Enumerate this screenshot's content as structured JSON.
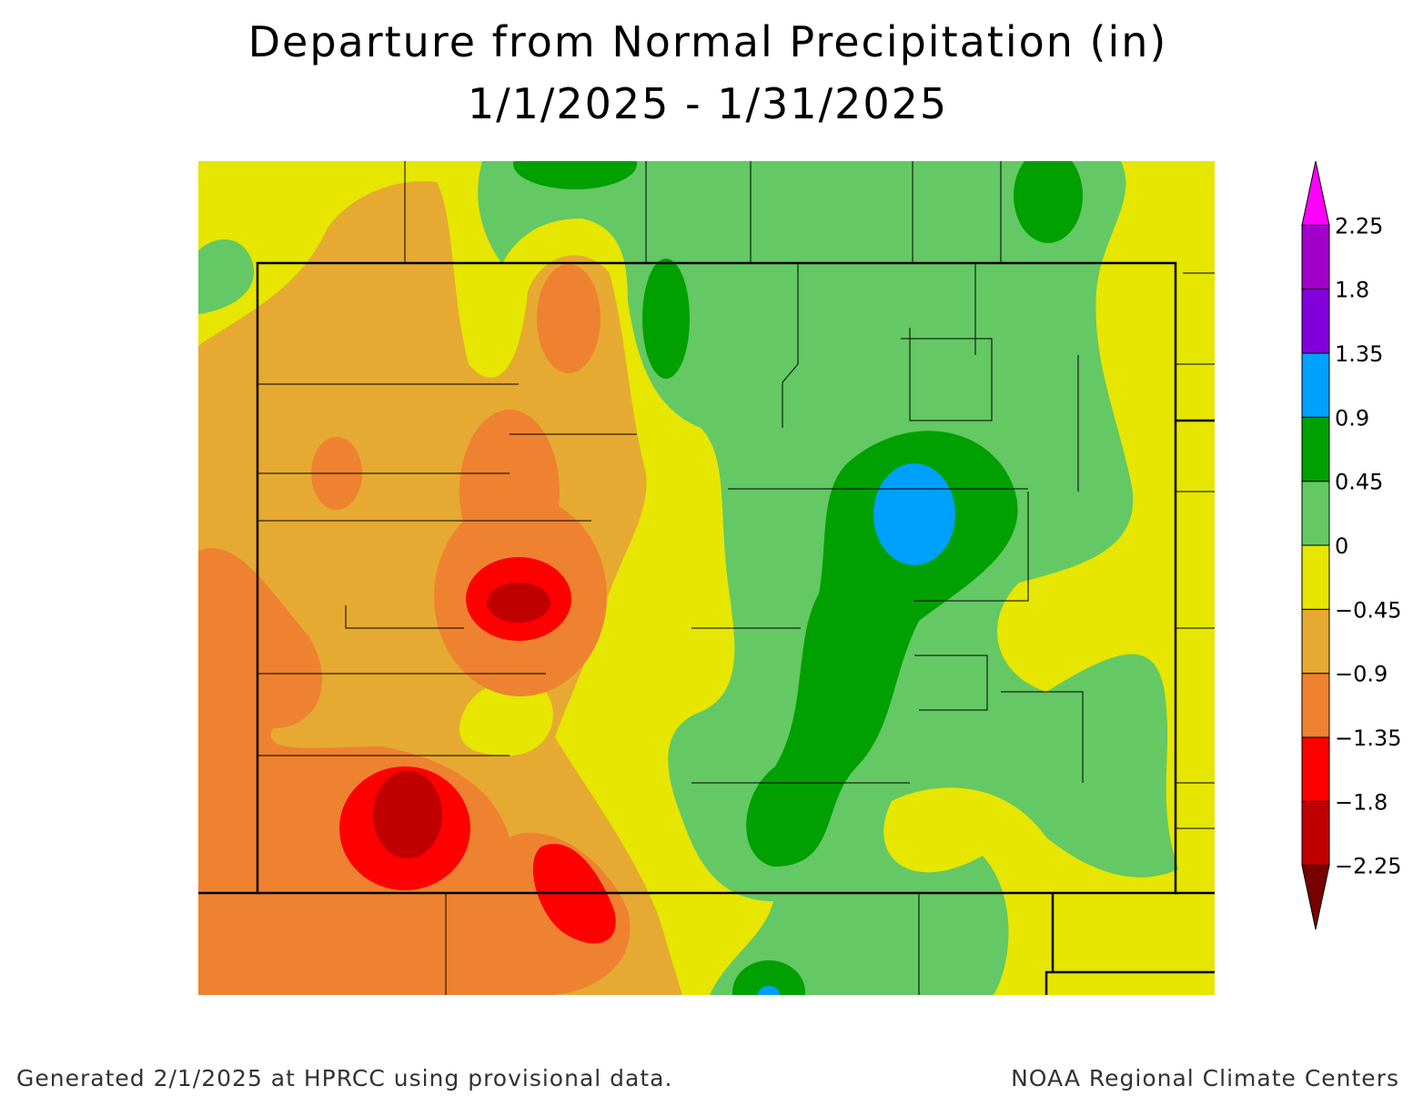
{
  "title": "Departure from Normal Precipitation (in)",
  "subtitle": "1/1/2025 - 1/31/2025",
  "legend": {
    "colors": [
      "#780000",
      "#c00000",
      "#ff0000",
      "#ee8230",
      "#e6aa32",
      "#e6e600",
      "#64c864",
      "#00a000",
      "#00a0ff",
      "#8200dc",
      "#a000c8",
      "#ff00ff"
    ],
    "labels": [
      "−2.25",
      "−1.8",
      "−1.35",
      "−0.9",
      "−0.45",
      "0",
      "0.45",
      "0.9",
      "1.35",
      "1.8",
      "2.25"
    ]
  },
  "footer": {
    "left": "Generated 2/1/2025 at HPRCC using provisional data.",
    "right": "NOAA Regional Climate Centers"
  }
}
